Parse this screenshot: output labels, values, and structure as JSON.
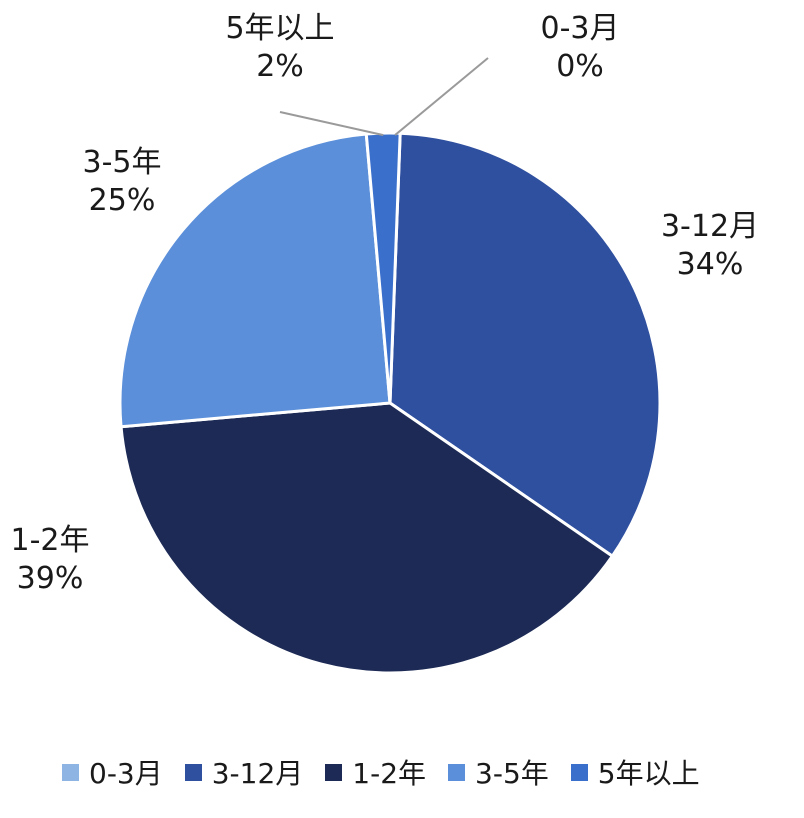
{
  "chart_data": {
    "type": "pie",
    "slices": [
      {
        "label": "0-3月",
        "value": 0,
        "percent_label": "0%",
        "color": "#8DB4E2"
      },
      {
        "label": "3-12月",
        "value": 34,
        "percent_label": "34%",
        "color": "#2F4F9F"
      },
      {
        "label": "1-2年",
        "value": 39,
        "percent_label": "39%",
        "color": "#1C2A55"
      },
      {
        "label": "3-5年",
        "value": 25,
        "percent_label": "25%",
        "color": "#5B8FD9"
      },
      {
        "label": "5年以上",
        "value": 2,
        "percent_label": "2%",
        "color": "#3A6FCC"
      }
    ],
    "legend_position": "bottom"
  }
}
